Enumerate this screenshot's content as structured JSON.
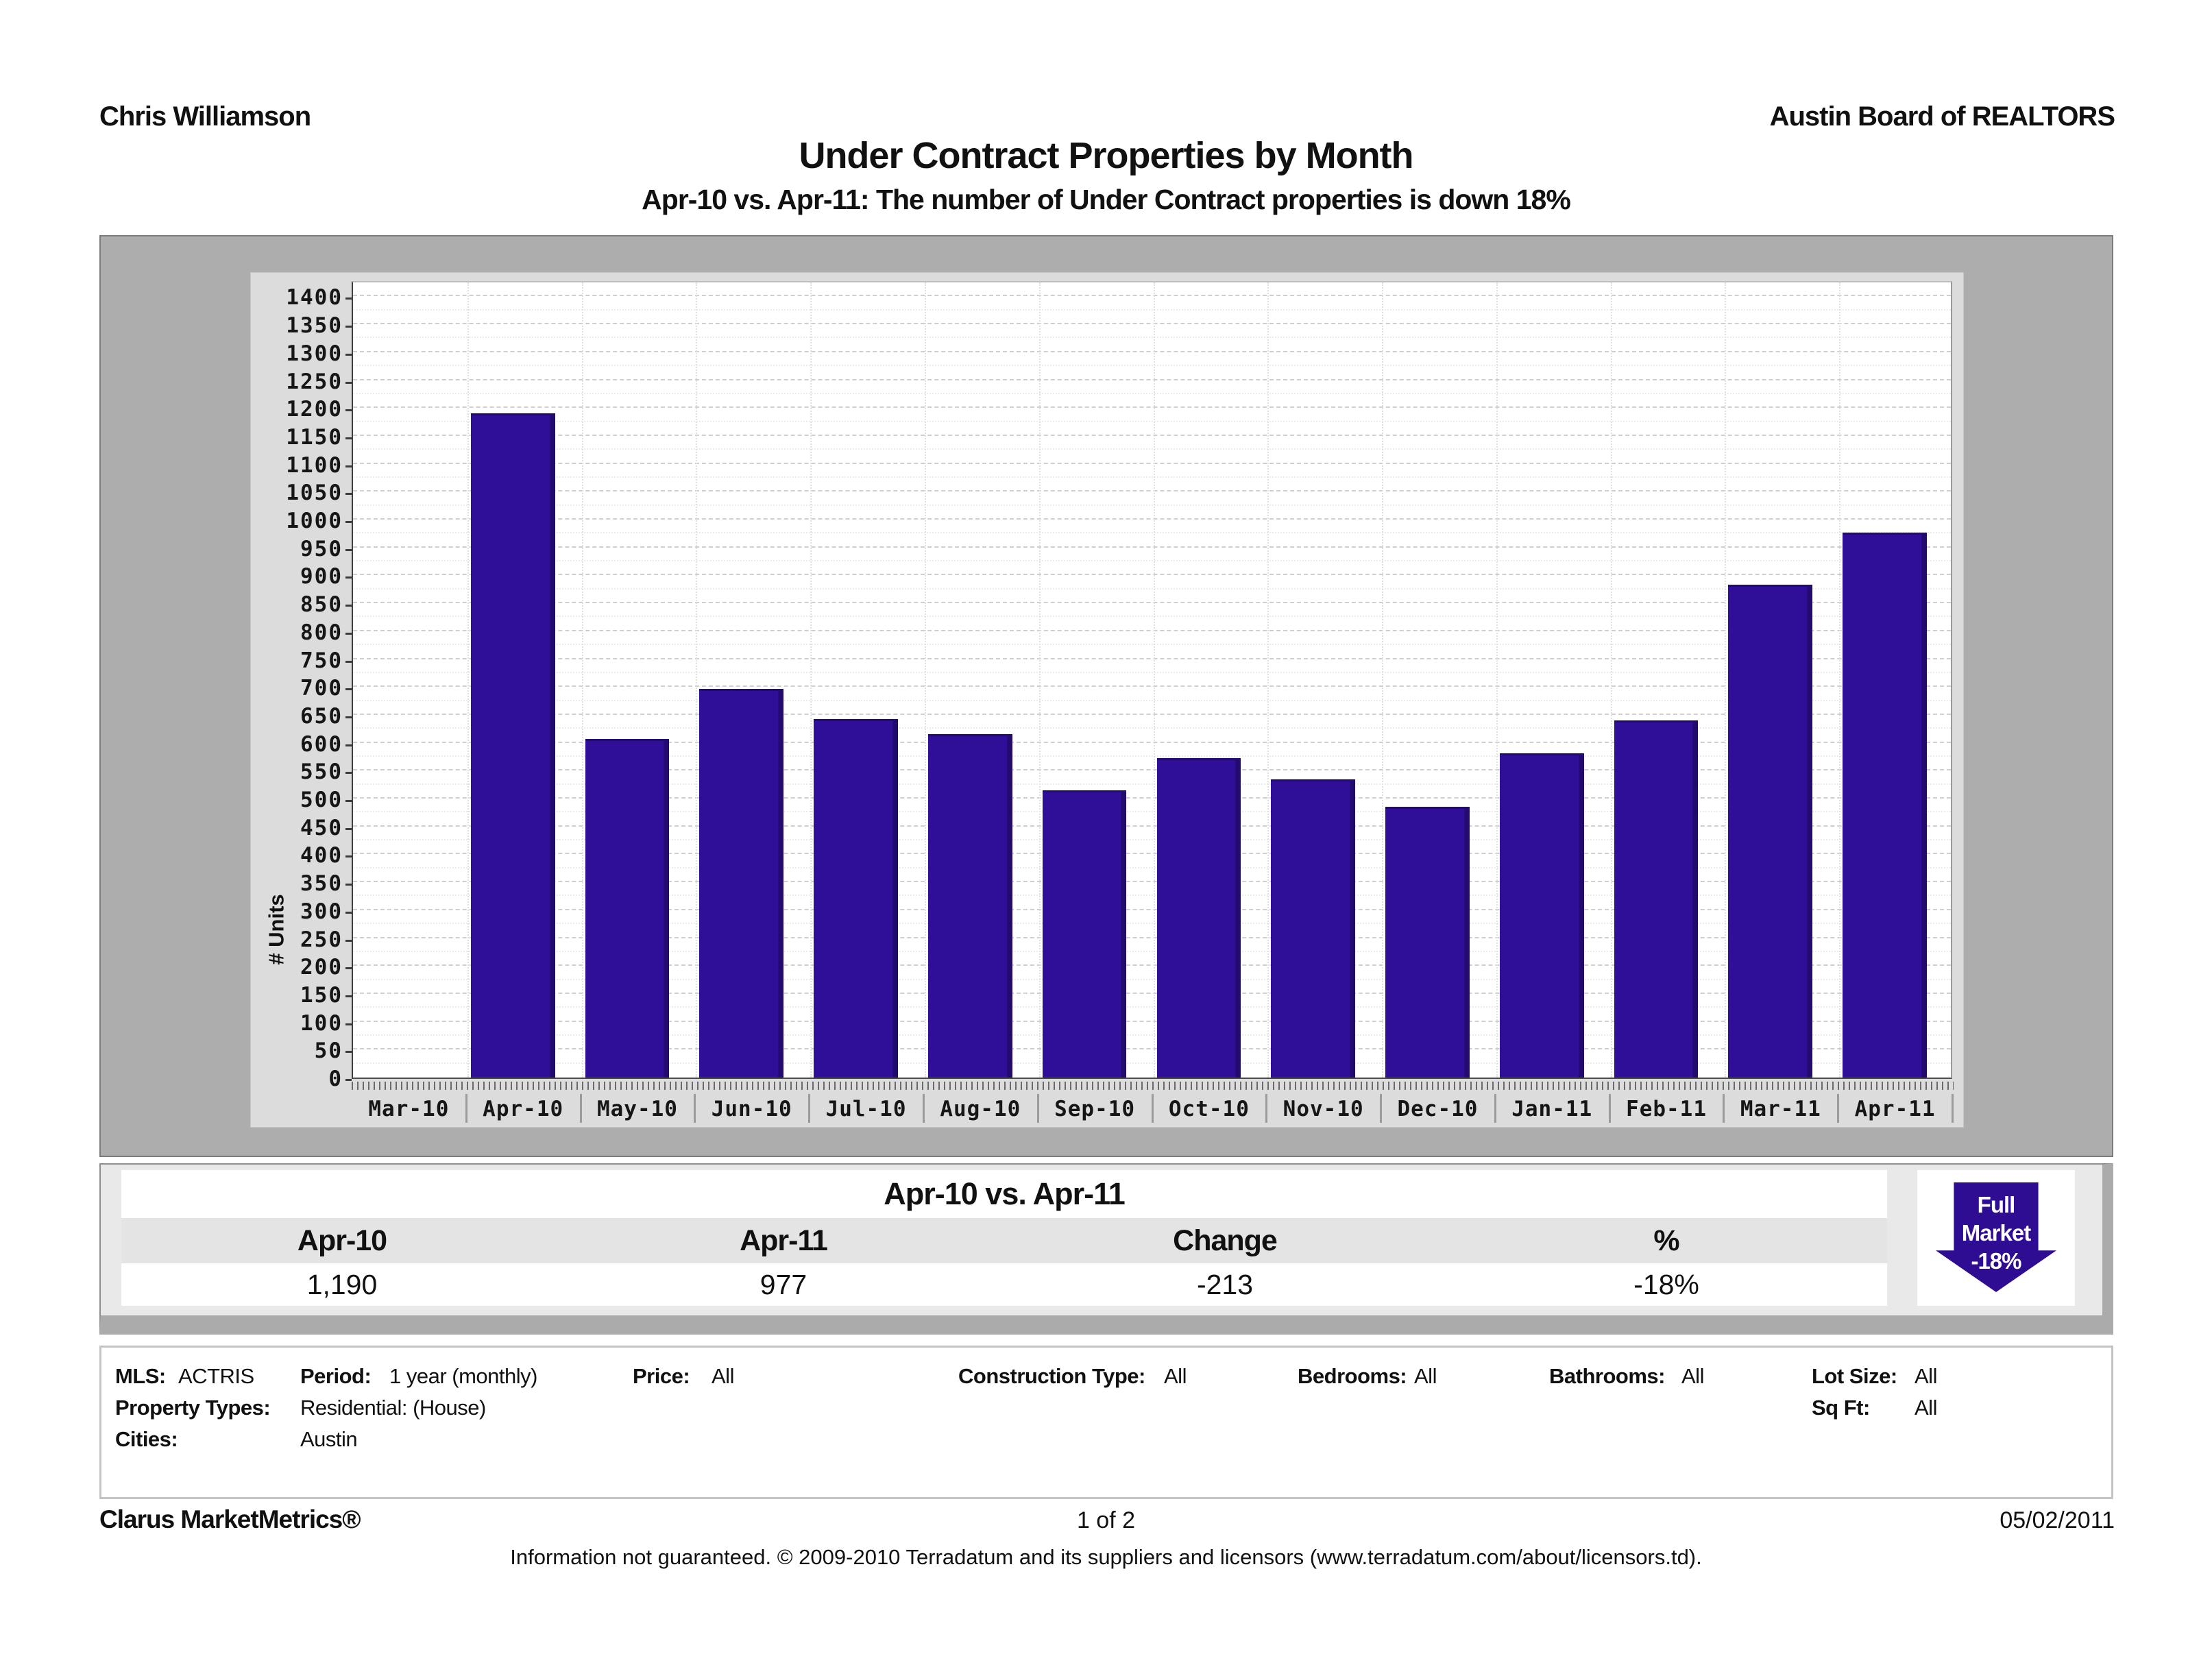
{
  "header": {
    "agent": "Chris Williamson",
    "board": "Austin Board of REALTORS"
  },
  "title": "Under Contract Properties by Month",
  "subtitle": "Apr-10 vs. Apr-11: The number of Under Contract properties is down 18%",
  "chart_data": {
    "type": "bar",
    "title": "Under Contract Properties by Month",
    "categories": [
      "Mar-10",
      "Apr-10",
      "May-10",
      "Jun-10",
      "Jul-10",
      "Aug-10",
      "Sep-10",
      "Oct-10",
      "Nov-10",
      "Dec-10",
      "Jan-11",
      "Feb-11",
      "Mar-11",
      "Apr-11"
    ],
    "values": [
      null,
      1190,
      607,
      697,
      642,
      616,
      515,
      573,
      535,
      485,
      581,
      640,
      883,
      977
    ],
    "xlabel": "",
    "ylabel": "# Units",
    "ylim": [
      0,
      1400
    ],
    "ytick_step": 50,
    "grid": true,
    "legend": null,
    "bar_color": "#2e0d93"
  },
  "summary": {
    "title": "Apr-10 vs. Apr-11",
    "columns": [
      "Apr-10",
      "Apr-11",
      "Change",
      "%"
    ],
    "row": [
      "1,190",
      "977",
      "-213",
      "-18%"
    ]
  },
  "badge": {
    "line1": "Full",
    "line2": "Market",
    "line3": "-18%",
    "color": "#2e0d93"
  },
  "criteria": {
    "row1": [
      {
        "label": "MLS:",
        "value": "ACTRIS"
      },
      {
        "label": "Period:",
        "value": "1 year (monthly)"
      },
      {
        "label": "Price:",
        "value": "All"
      },
      {
        "label": "Construction Type:",
        "value": "All"
      },
      {
        "label": "Bedrooms:",
        "value": "All"
      },
      {
        "label": "Bathrooms:",
        "value": "All"
      },
      {
        "label": "Lot Size:",
        "value": "All"
      }
    ],
    "row2": [
      {
        "label": "Property Types:",
        "value": "Residential: (House)"
      },
      {
        "label": "Sq Ft:",
        "value": "All"
      }
    ],
    "row3": [
      {
        "label": "Cities:",
        "value": "Austin"
      }
    ]
  },
  "footer": {
    "brand": "Clarus MarketMetrics®",
    "page": "1 of 2",
    "date": "05/02/2011",
    "note": "Information not guaranteed.  © 2009-2010 Terradatum and its suppliers and licensors (www.terradatum.com/about/licensors.td)."
  }
}
